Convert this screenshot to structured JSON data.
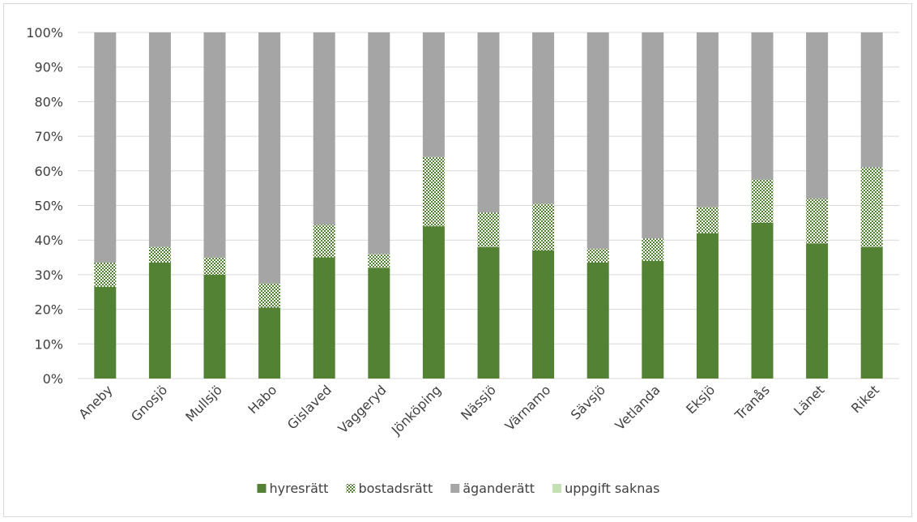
{
  "chart_data": {
    "type": "bar",
    "stacked": true,
    "categories": [
      "Aneby",
      "Gnosjö",
      "Mullsjö",
      "Habo",
      "Gislaved",
      "Vaggeryd",
      "Jönköping",
      "Nässjö",
      "Värnamo",
      "Sävsjö",
      "Vetlanda",
      "Eksjö",
      "Tranås",
      "Länet",
      "Riket"
    ],
    "series": [
      {
        "name": "hyresrätt",
        "values": [
          26.5,
          33.5,
          30,
          20.5,
          35,
          32,
          44,
          38,
          37,
          33.5,
          34,
          42,
          45,
          39,
          38
        ],
        "color": "#548235",
        "pattern": "solid"
      },
      {
        "name": "bostadsrätt",
        "values": [
          7,
          4.5,
          5,
          7,
          9.5,
          4,
          20,
          10,
          13.5,
          4,
          6.5,
          7.5,
          12.5,
          13,
          23
        ],
        "color": "#548235",
        "pattern": "dots"
      },
      {
        "name": "äganderätt",
        "values": [
          66.5,
          62,
          65,
          72.5,
          55.5,
          64,
          36,
          52,
          49.5,
          62.5,
          59.5,
          50.5,
          42.5,
          48,
          39
        ],
        "color": "#a5a5a5",
        "pattern": "solid"
      },
      {
        "name": "uppgift saknas",
        "values": [
          0,
          0,
          0,
          0,
          0,
          0,
          0,
          0,
          0,
          0,
          0,
          0,
          0,
          0,
          0
        ],
        "color": "#c5e0b4",
        "pattern": "solid"
      }
    ],
    "ylim": [
      0,
      100
    ],
    "yticks": [
      "0%",
      "10%",
      "20%",
      "30%",
      "40%",
      "50%",
      "60%",
      "70%",
      "80%",
      "90%",
      "100%"
    ],
    "grid": true,
    "legend_position": "bottom"
  }
}
